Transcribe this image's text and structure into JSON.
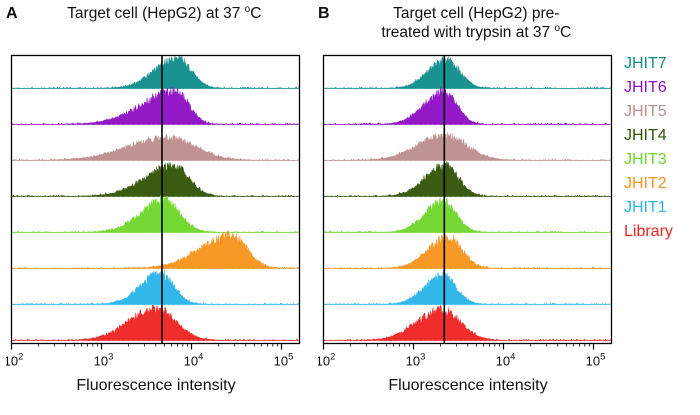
{
  "chart_data": {
    "type": "histogram",
    "xlabel": "Fluorescence intensity",
    "x_scale": "log10",
    "x_log_range": [
      2,
      5.2
    ],
    "x_ticks": [
      {
        "base": "10",
        "exp": "2"
      },
      {
        "base": "10",
        "exp": "3"
      },
      {
        "base": "10",
        "exp": "4"
      },
      {
        "base": "10",
        "exp": "5"
      }
    ],
    "legend_position": "right",
    "legend": [
      {
        "label": "JHIT7",
        "color": "#108c8c"
      },
      {
        "label": "JHIT6",
        "color": "#8f10c4"
      },
      {
        "label": "JHIT5",
        "color": "#bc8f8f"
      },
      {
        "label": "JHIT4",
        "color": "#335408"
      },
      {
        "label": "JHIT3",
        "color": "#70d62c"
      },
      {
        "label": "JHIT2",
        "color": "#f7941e"
      },
      {
        "label": "JHIT1",
        "color": "#2ab4ea"
      },
      {
        "label": "Library",
        "color": "#ee2424"
      }
    ],
    "panels": [
      {
        "label": "A",
        "title_lines": [
          "Target cell (HepG2) at 37 "
        ],
        "title_sup": "o",
        "title_end": "C",
        "gate_x": 4700,
        "series": [
          {
            "name": "JHIT7",
            "color": "#108c8c",
            "peak_x": 7000,
            "sigma_left": 0.25,
            "sigma_right": 0.15,
            "height": 30
          },
          {
            "name": "JHIT6",
            "color": "#8f10c4",
            "peak_x": 6800,
            "sigma_left": 0.38,
            "sigma_right": 0.14,
            "height": 32
          },
          {
            "name": "JHIT5",
            "color": "#bc8f8f",
            "peak_x": 5600,
            "sigma_left": 0.45,
            "sigma_right": 0.3,
            "height": 22
          },
          {
            "name": "JHIT4",
            "color": "#335408",
            "peak_x": 6300,
            "sigma_left": 0.32,
            "sigma_right": 0.17,
            "height": 30
          },
          {
            "name": "JHIT3",
            "color": "#70d62c",
            "peak_x": 5000,
            "sigma_left": 0.26,
            "sigma_right": 0.17,
            "height": 32
          },
          {
            "name": "JHIT2",
            "color": "#f7941e",
            "peak_x": 28000,
            "sigma_left": 0.35,
            "sigma_right": 0.17,
            "height": 32
          },
          {
            "name": "JHIT1",
            "color": "#2ab4ea",
            "peak_x": 4500,
            "sigma_left": 0.22,
            "sigma_right": 0.15,
            "height": 30
          },
          {
            "name": "Library",
            "color": "#ee2424",
            "peak_x": 4000,
            "sigma_left": 0.3,
            "sigma_right": 0.22,
            "height": 31
          }
        ]
      },
      {
        "label": "B",
        "title_lines": [
          "Target cell (HepG2) pre-",
          "treated with trypsin at 37 "
        ],
        "title_sup": "o",
        "title_end": "C",
        "gate_x": 2200,
        "series": [
          {
            "name": "JHIT7",
            "color": "#108c8c",
            "peak_x": 2300,
            "sigma_left": 0.2,
            "sigma_right": 0.15,
            "height": 28
          },
          {
            "name": "JHIT6",
            "color": "#8f10c4",
            "peak_x": 2200,
            "sigma_left": 0.22,
            "sigma_right": 0.14,
            "height": 32
          },
          {
            "name": "JHIT5",
            "color": "#bc8f8f",
            "peak_x": 2200,
            "sigma_left": 0.3,
            "sigma_right": 0.25,
            "height": 24
          },
          {
            "name": "JHIT4",
            "color": "#335408",
            "peak_x": 2250,
            "sigma_left": 0.22,
            "sigma_right": 0.15,
            "height": 30
          },
          {
            "name": "JHIT3",
            "color": "#70d62c",
            "peak_x": 2100,
            "sigma_left": 0.2,
            "sigma_right": 0.15,
            "height": 30
          },
          {
            "name": "JHIT2",
            "color": "#f7941e",
            "peak_x": 2400,
            "sigma_left": 0.22,
            "sigma_right": 0.16,
            "height": 30
          },
          {
            "name": "JHIT1",
            "color": "#2ab4ea",
            "peak_x": 2100,
            "sigma_left": 0.2,
            "sigma_right": 0.15,
            "height": 28
          },
          {
            "name": "Library",
            "color": "#ee2424",
            "peak_x": 2100,
            "sigma_left": 0.28,
            "sigma_right": 0.2,
            "height": 30
          }
        ]
      }
    ]
  }
}
